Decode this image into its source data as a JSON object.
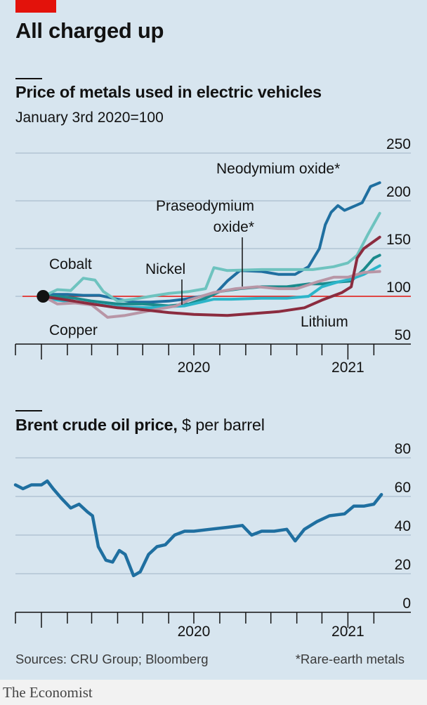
{
  "headline": "All charged up",
  "source": "Sources: CRU Group; Bloomberg",
  "footnote": "*Rare-earth metals",
  "brand": "The Economist",
  "chart_data": [
    {
      "type": "line",
      "title": "Price of metals used in electric vehicles",
      "subtitle": "January 3rd 2020=100",
      "ylim": [
        50,
        250
      ],
      "yticks": [
        50,
        100,
        150,
        200,
        250
      ],
      "x_range": [
        "2019-12-01",
        "2021-02-20"
      ],
      "xtick_labels": [
        {
          "label": "2020",
          "x": "2020-07-01"
        },
        {
          "label": "2021",
          "x": "2021-01-01"
        }
      ],
      "grid": true,
      "start_marker": {
        "x": "2020-01-03",
        "y": 100
      },
      "series": [
        {
          "name": "Neodymium oxide*",
          "color": "#1f6fa0",
          "points": [
            [
              "2020-01-03",
              100
            ],
            [
              "2020-01-15",
              102
            ],
            [
              "2020-02-01",
              102
            ],
            [
              "2020-02-20",
              101
            ],
            [
              "2020-03-10",
              101
            ],
            [
              "2020-04-01",
              97
            ],
            [
              "2020-04-20",
              94
            ],
            [
              "2020-05-10",
              94
            ],
            [
              "2020-06-01",
              95
            ],
            [
              "2020-06-20",
              97
            ],
            [
              "2020-07-10",
              100
            ],
            [
              "2020-07-28",
              104
            ],
            [
              "2020-08-10",
              116
            ],
            [
              "2020-08-25",
              127
            ],
            [
              "2020-09-20",
              126
            ],
            [
              "2020-10-10",
              123
            ],
            [
              "2020-10-30",
              123
            ],
            [
              "2020-11-15",
              131
            ],
            [
              "2020-11-28",
              150
            ],
            [
              "2020-12-05",
              175
            ],
            [
              "2020-12-12",
              188
            ],
            [
              "2020-12-20",
              195
            ],
            [
              "2020-12-28",
              190
            ],
            [
              "2021-01-05",
              193
            ],
            [
              "2021-01-18",
              198
            ],
            [
              "2021-01-28",
              215
            ],
            [
              "2021-02-08",
              219
            ]
          ]
        },
        {
          "name": "Praseodymium oxide*",
          "color": "#1b8a8c",
          "points": [
            [
              "2020-01-03",
              100
            ],
            [
              "2020-01-20",
              100
            ],
            [
              "2020-02-10",
              98
            ],
            [
              "2020-03-01",
              95
            ],
            [
              "2020-04-01",
              92
            ],
            [
              "2020-05-01",
              92
            ],
            [
              "2020-06-01",
              90
            ],
            [
              "2020-06-25",
              92
            ],
            [
              "2020-07-15",
              98
            ],
            [
              "2020-08-01",
              105
            ],
            [
              "2020-08-25",
              108
            ],
            [
              "2020-09-20",
              110
            ],
            [
              "2020-10-20",
              110
            ],
            [
              "2020-11-15",
              113
            ],
            [
              "2020-12-01",
              113
            ],
            [
              "2020-12-20",
              115
            ],
            [
              "2021-01-05",
              116
            ],
            [
              "2021-01-20",
              128
            ],
            [
              "2021-02-01",
              140
            ],
            [
              "2021-02-08",
              143
            ]
          ]
        },
        {
          "name": "Cobalt",
          "color": "#6ec3bf",
          "points": [
            [
              "2020-01-03",
              100
            ],
            [
              "2020-01-20",
              107
            ],
            [
              "2020-02-05",
              106
            ],
            [
              "2020-02-20",
              119
            ],
            [
              "2020-03-05",
              117
            ],
            [
              "2020-03-15",
              105
            ],
            [
              "2020-04-01",
              95
            ],
            [
              "2020-04-20",
              97
            ],
            [
              "2020-05-10",
              100
            ],
            [
              "2020-06-01",
              103
            ],
            [
              "2020-06-25",
              105
            ],
            [
              "2020-07-15",
              108
            ],
            [
              "2020-07-25",
              130
            ],
            [
              "2020-08-10",
              127
            ],
            [
              "2020-09-20",
              128
            ],
            [
              "2020-10-20",
              128
            ],
            [
              "2020-11-20",
              128
            ],
            [
              "2020-12-15",
              131
            ],
            [
              "2021-01-01",
              135
            ],
            [
              "2021-01-12",
              143
            ],
            [
              "2021-01-25",
              165
            ],
            [
              "2021-02-08",
              187
            ]
          ]
        },
        {
          "name": "Nickel",
          "color": "#2cb5c9",
          "points": [
            [
              "2020-01-03",
              100
            ],
            [
              "2020-01-20",
              96
            ],
            [
              "2020-02-20",
              93
            ],
            [
              "2020-04-01",
              89
            ],
            [
              "2020-05-10",
              88
            ],
            [
              "2020-06-20",
              90
            ],
            [
              "2020-07-10",
              94
            ],
            [
              "2020-07-25",
              97
            ],
            [
              "2020-08-15",
              97
            ],
            [
              "2020-09-20",
              98
            ],
            [
              "2020-10-20",
              98
            ],
            [
              "2020-11-15",
              100
            ],
            [
              "2020-12-01",
              110
            ],
            [
              "2020-12-20",
              115
            ],
            [
              "2021-01-05",
              118
            ],
            [
              "2021-01-20",
              123
            ],
            [
              "2021-02-08",
              132
            ]
          ]
        },
        {
          "name": "Copper",
          "color": "#b896a6",
          "points": [
            [
              "2020-01-03",
              100
            ],
            [
              "2020-01-20",
              92
            ],
            [
              "2020-02-10",
              93
            ],
            [
              "2020-03-01",
              91
            ],
            [
              "2020-03-20",
              78
            ],
            [
              "2020-04-10",
              80
            ],
            [
              "2020-05-10",
              85
            ],
            [
              "2020-06-10",
              90
            ],
            [
              "2020-06-25",
              96
            ],
            [
              "2020-07-25",
              104
            ],
            [
              "2020-08-20",
              108
            ],
            [
              "2020-09-15",
              110
            ],
            [
              "2020-10-10",
              108
            ],
            [
              "2020-11-01",
              108
            ],
            [
              "2020-11-25",
              115
            ],
            [
              "2020-12-15",
              120
            ],
            [
              "2021-01-01",
              120
            ],
            [
              "2021-01-20",
              125
            ],
            [
              "2021-02-08",
              126
            ]
          ]
        },
        {
          "name": "Lithium",
          "color": "#8b2c3f",
          "points": [
            [
              "2020-01-03",
              100
            ],
            [
              "2020-02-01",
              96
            ],
            [
              "2020-03-01",
              92
            ],
            [
              "2020-04-01",
              88
            ],
            [
              "2020-05-01",
              86
            ],
            [
              "2020-06-01",
              83
            ],
            [
              "2020-07-01",
              81
            ],
            [
              "2020-08-10",
              80
            ],
            [
              "2020-09-10",
              82
            ],
            [
              "2020-10-10",
              84
            ],
            [
              "2020-11-10",
              88
            ],
            [
              "2020-12-01",
              96
            ],
            [
              "2020-12-25",
              104
            ],
            [
              "2021-01-05",
              110
            ],
            [
              "2021-01-12",
              140
            ],
            [
              "2021-01-20",
              150
            ],
            [
              "2021-02-08",
              162
            ]
          ]
        }
      ]
    },
    {
      "type": "line",
      "title": "Brent crude oil price,",
      "unit": "$ per barrel",
      "ylim": [
        0,
        80
      ],
      "yticks": [
        0,
        20,
        40,
        60,
        80
      ],
      "x_range": [
        "2019-12-01",
        "2021-02-20"
      ],
      "xtick_labels": [
        {
          "label": "2020",
          "x": "2020-07-01"
        },
        {
          "label": "2021",
          "x": "2021-01-01"
        }
      ],
      "grid": true,
      "series": [
        {
          "color": "#1f6fa0",
          "points": [
            [
              "2019-12-01",
              66
            ],
            [
              "2019-12-10",
              64
            ],
            [
              "2019-12-20",
              66
            ],
            [
              "2020-01-01",
              66
            ],
            [
              "2020-01-08",
              68
            ],
            [
              "2020-01-15",
              64
            ],
            [
              "2020-01-25",
              59
            ],
            [
              "2020-02-05",
              54
            ],
            [
              "2020-02-15",
              56
            ],
            [
              "2020-02-25",
              52
            ],
            [
              "2020-03-02",
              50
            ],
            [
              "2020-03-09",
              34
            ],
            [
              "2020-03-18",
              27
            ],
            [
              "2020-03-26",
              26
            ],
            [
              "2020-04-03",
              32
            ],
            [
              "2020-04-10",
              30
            ],
            [
              "2020-04-20",
              19
            ],
            [
              "2020-04-28",
              21
            ],
            [
              "2020-05-08",
              30
            ],
            [
              "2020-05-18",
              34
            ],
            [
              "2020-05-28",
              35
            ],
            [
              "2020-06-08",
              40
            ],
            [
              "2020-06-20",
              42
            ],
            [
              "2020-07-01",
              42
            ],
            [
              "2020-07-20",
              43
            ],
            [
              "2020-08-10",
              44
            ],
            [
              "2020-08-28",
              45
            ],
            [
              "2020-09-08",
              40
            ],
            [
              "2020-09-20",
              42
            ],
            [
              "2020-10-05",
              42
            ],
            [
              "2020-10-20",
              43
            ],
            [
              "2020-10-30",
              37
            ],
            [
              "2020-11-10",
              43
            ],
            [
              "2020-11-25",
              47
            ],
            [
              "2020-12-10",
              50
            ],
            [
              "2020-12-28",
              51
            ],
            [
              "2021-01-08",
              55
            ],
            [
              "2021-01-20",
              55
            ],
            [
              "2021-02-01",
              56
            ],
            [
              "2021-02-10",
              61
            ]
          ]
        }
      ]
    }
  ]
}
